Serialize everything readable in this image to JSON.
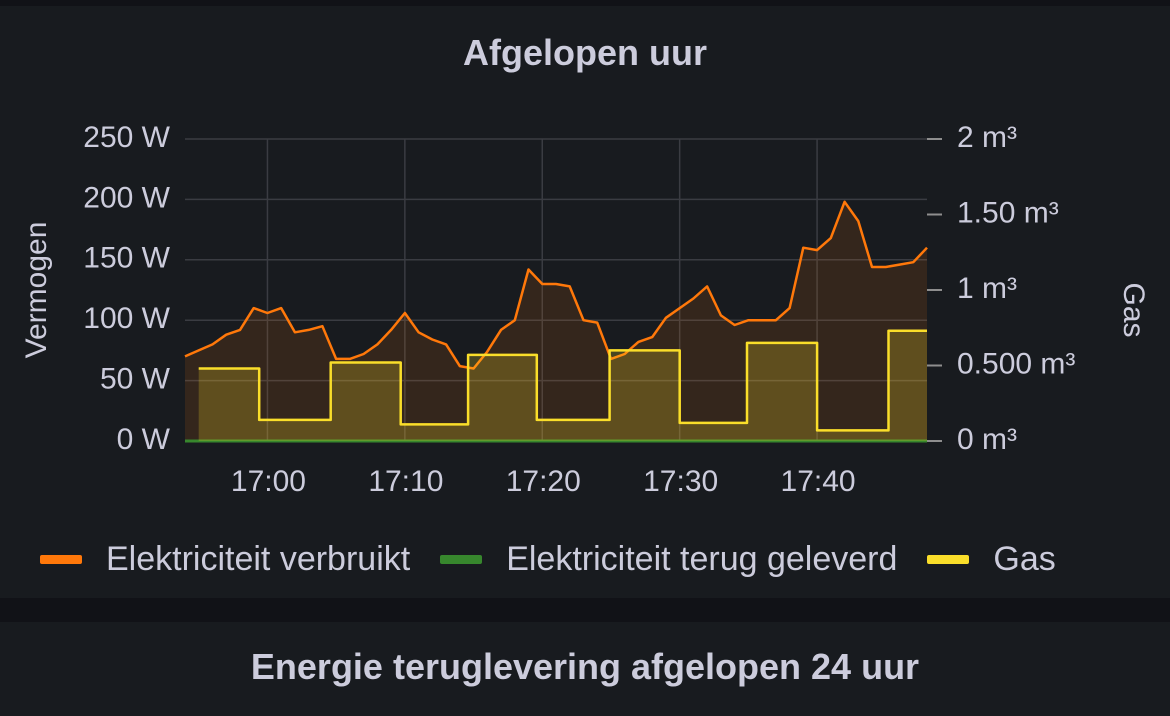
{
  "panel_top": {
    "title": "Afgelopen uur",
    "legend": [
      {
        "label": "Elektriciteit verbruikt",
        "color": "#ff780a"
      },
      {
        "label": "Elektriciteit terug geleverd",
        "color": "#37872d"
      },
      {
        "label": "Gas",
        "color": "#fade2a"
      }
    ]
  },
  "panel_bottom": {
    "title": "Energie teruglevering afgelopen 24 uur"
  },
  "chart_data": {
    "type": "line",
    "title": "Afgelopen uur",
    "x_ticks": [
      "17:00",
      "17:10",
      "17:20",
      "17:30",
      "17:40"
    ],
    "xlim": [
      "16:54",
      "17:48"
    ],
    "y_left": {
      "label": "Vermogen",
      "ticks": [
        "0 W",
        "50 W",
        "100 W",
        "150 W",
        "200 W",
        "250 W"
      ],
      "lim": [
        0,
        250
      ]
    },
    "y_right": {
      "label": "Gas",
      "ticks": [
        "0 m³",
        "0.500 m³",
        "1 m³",
        "1.50 m³",
        "2 m³"
      ],
      "lim": [
        0,
        2
      ]
    },
    "grid": true,
    "legend_position": "bottom",
    "series": [
      {
        "name": "Elektriciteit verbruikt",
        "axis": "left",
        "color": "#ff780a",
        "x": [
          "16:54",
          "16:55",
          "16:56",
          "16:57",
          "16:58",
          "16:59",
          "17:00",
          "17:01",
          "17:02",
          "17:03",
          "17:04",
          "17:05",
          "17:06",
          "17:07",
          "17:08",
          "17:09",
          "17:10",
          "17:11",
          "17:12",
          "17:13",
          "17:14",
          "17:15",
          "17:16",
          "17:17",
          "17:18",
          "17:19",
          "17:20",
          "17:21",
          "17:22",
          "17:23",
          "17:24",
          "17:25",
          "17:26",
          "17:27",
          "17:28",
          "17:29",
          "17:30",
          "17:31",
          "17:32",
          "17:33",
          "17:34",
          "17:35",
          "17:36",
          "17:37",
          "17:38",
          "17:39",
          "17:40",
          "17:41",
          "17:42",
          "17:43",
          "17:44",
          "17:45",
          "17:46",
          "17:47",
          "17:48"
        ],
        "values": [
          70,
          75,
          80,
          88,
          92,
          110,
          106,
          110,
          90,
          92,
          95,
          68,
          68,
          72,
          80,
          92,
          106,
          90,
          84,
          80,
          62,
          60,
          74,
          92,
          100,
          142,
          130,
          130,
          128,
          100,
          98,
          68,
          72,
          82,
          86,
          102,
          110,
          118,
          128,
          104,
          96,
          100,
          100,
          100,
          110,
          160,
          158,
          168,
          198,
          182,
          144,
          144,
          146,
          148,
          160
        ]
      },
      {
        "name": "Elektriciteit terug geleverd",
        "axis": "left",
        "color": "#37872d",
        "x": [
          "16:54",
          "17:48"
        ],
        "values": [
          0,
          0
        ]
      },
      {
        "name": "Gas",
        "axis": "right",
        "color": "#fade2a",
        "x": [
          "16:55",
          "16:59.4",
          "16:59.4",
          "17:04.6",
          "17:04.6",
          "17:09.7",
          "17:09.7",
          "17:14.6",
          "17:14.6",
          "17:19.6",
          "17:19.6",
          "17:24.9",
          "17:24.9",
          "17:30",
          "17:30",
          "17:34.9",
          "17:34.9",
          "17:40",
          "17:40",
          "17:45.2",
          "17:45.2",
          "17:48"
        ],
        "values": [
          0.48,
          0.48,
          0.14,
          0.14,
          0.52,
          0.52,
          0.11,
          0.11,
          0.57,
          0.57,
          0.14,
          0.14,
          0.6,
          0.6,
          0.12,
          0.12,
          0.65,
          0.65,
          0.07,
          0.07,
          0.73,
          0.73
        ]
      }
    ]
  }
}
